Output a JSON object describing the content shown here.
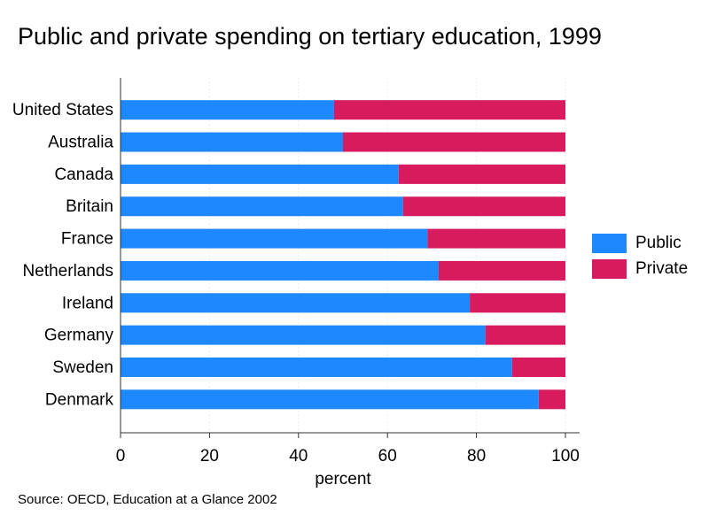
{
  "title": "Public and private spending on tertiary education, 1999",
  "source": "Source: OECD, Education at a Glance 2002",
  "colors": {
    "public": "#1e88ff",
    "private": "#d81b5e",
    "axis": "#333333",
    "grid": "#eeeeee"
  },
  "chart_data": {
    "type": "bar",
    "orientation": "horizontal",
    "stacked": true,
    "title": "Public and private spending on tertiary education, 1999",
    "xlabel": "percent",
    "ylabel": "",
    "xlim": [
      0,
      100
    ],
    "xticks": [
      0,
      20,
      40,
      60,
      80,
      100
    ],
    "grid": true,
    "legend_position": "right",
    "categories": [
      "United States",
      "Australia",
      "Canada",
      "Britain",
      "France",
      "Netherlands",
      "Ireland",
      "Germany",
      "Sweden",
      "Denmark"
    ],
    "series": [
      {
        "name": "Public",
        "color": "#1e88ff",
        "values": [
          48,
          50,
          62.5,
          63.5,
          69,
          71.5,
          78.5,
          82,
          88,
          94
        ]
      },
      {
        "name": "Private",
        "color": "#d81b5e",
        "values": [
          52,
          50,
          37.5,
          36.5,
          31,
          28.5,
          21.5,
          18,
          12,
          6
        ]
      }
    ]
  }
}
